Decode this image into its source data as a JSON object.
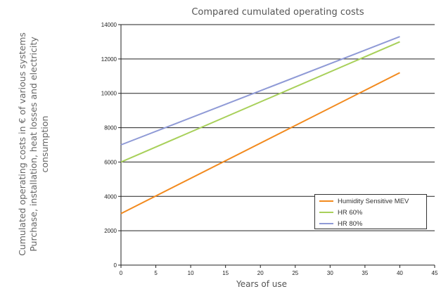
{
  "chart_data": {
    "type": "line",
    "title": "Compared cumulated operating costs",
    "xlabel": "Years of use",
    "ylabel": [
      "Cumulated operating costs in € of various systems",
      "Purchase, installation, heat losses and electricity",
      "consumption"
    ],
    "xlim": [
      0,
      45
    ],
    "ylim": [
      0,
      14000
    ],
    "x_ticks": [
      0,
      5,
      10,
      15,
      20,
      25,
      30,
      35,
      40,
      45
    ],
    "y_ticks": [
      0,
      2000,
      4000,
      6000,
      8000,
      10000,
      12000,
      14000
    ],
    "grid": "horizontal",
    "legend_position": "bottom-right",
    "series": [
      {
        "name": "Humidity Sensitive MEV",
        "color": "#f28a1e",
        "x": [
          0,
          40
        ],
        "y": [
          3000,
          11200
        ]
      },
      {
        "name": "HR 60%",
        "color": "#a8d05a",
        "x": [
          0,
          40
        ],
        "y": [
          6000,
          13000
        ]
      },
      {
        "name": "HR 80%",
        "color": "#8f9ad6",
        "x": [
          0,
          40
        ],
        "y": [
          7000,
          13300
        ]
      }
    ]
  }
}
